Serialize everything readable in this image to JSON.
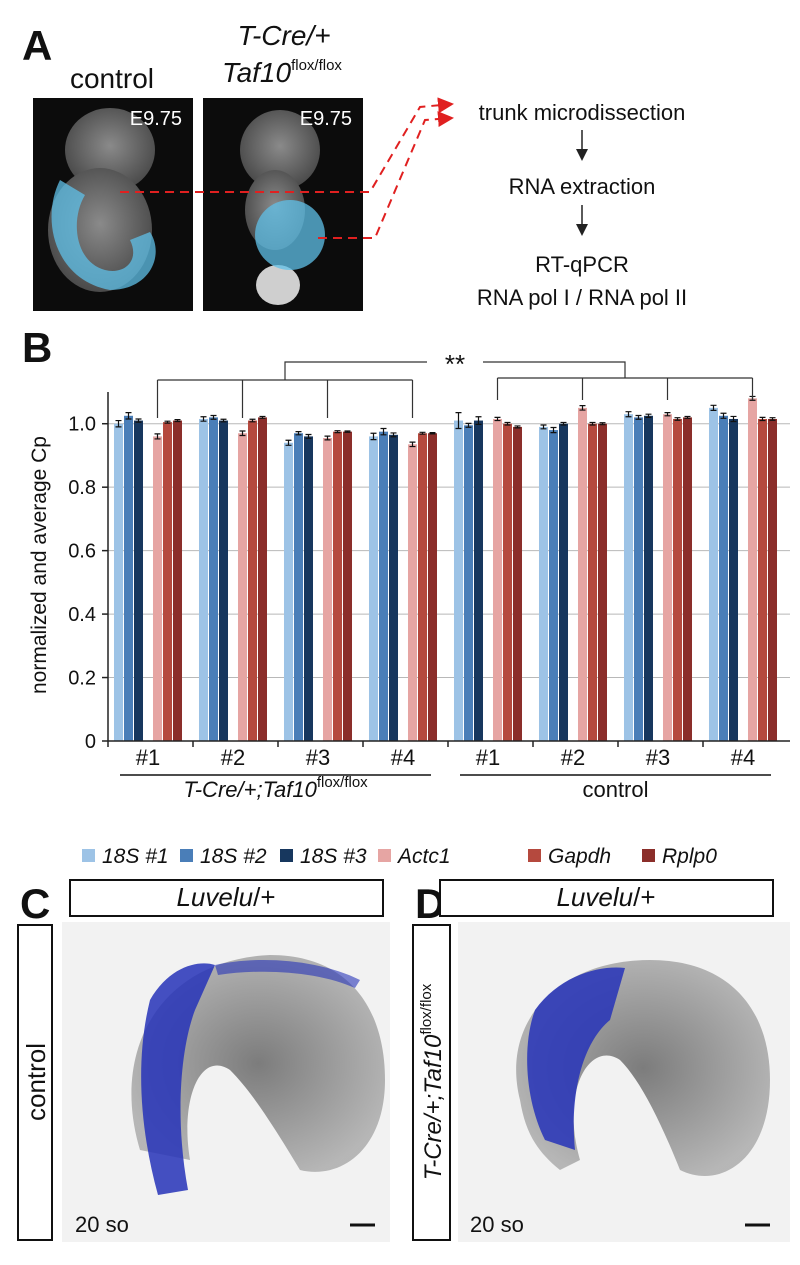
{
  "panel_a": {
    "label": "A",
    "control": "control",
    "mutant_line1": "T-Cre/+",
    "mutant_line2": {
      "base": "Taf10",
      "sup": "flox/flox"
    },
    "stages": [
      "E9.75",
      "E9.75"
    ],
    "steps": [
      "trunk microdissection",
      "RNA extraction",
      "RT-qPCR",
      "RNA pol I / RNA pol II"
    ]
  },
  "panel_b": {
    "label": "B"
  },
  "panel_c": {
    "label": "C",
    "header": {
      "italic": "Luvelu",
      "rest": "/+"
    },
    "side": "control",
    "stage": "20 so"
  },
  "panel_d": {
    "label": "D",
    "header": {
      "italic": "Luvelu",
      "rest": "/+"
    },
    "side": {
      "base": "T-Cre/+;Taf10",
      "sup": "flox/flox"
    },
    "stage": "20 so"
  },
  "chart_data": {
    "type": "bar",
    "ylabel": "normalized and average Cp",
    "categories": [
      "#1",
      "#2",
      "#3",
      "#4",
      "#1",
      "#2",
      "#3",
      "#4"
    ],
    "groups": [
      {
        "base": "T-Cre/+;Taf10",
        "sup": "flox/flox"
      },
      {
        "base": "control"
      }
    ],
    "significance": "**",
    "ylim": [
      0,
      1.1
    ],
    "yticks": [
      0,
      0.2,
      0.4,
      0.6,
      0.8,
      {
        "value": 1,
        "label": "1.0"
      }
    ],
    "grid": true,
    "series": [
      {
        "name": "18S #1",
        "color": "#9dc3e6",
        "values": [
          1.0,
          1.015,
          0.94,
          0.96,
          1.01,
          0.99,
          1.03,
          1.05
        ],
        "errors": [
          0.01,
          0.007,
          0.008,
          0.01,
          0.025,
          0.006,
          0.008,
          0.008
        ]
      },
      {
        "name": "18S #2",
        "color": "#4a7eb8",
        "values": [
          1.025,
          1.02,
          0.97,
          0.975,
          0.995,
          0.98,
          1.02,
          1.025
        ],
        "errors": [
          0.01,
          0.006,
          0.005,
          0.01,
          0.006,
          0.008,
          0.006,
          0.008
        ]
      },
      {
        "name": "18S #3",
        "color": "#17375e",
        "values": [
          1.01,
          1.01,
          0.96,
          0.965,
          1.01,
          1.0,
          1.025,
          1.015
        ],
        "errors": [
          0.005,
          0.004,
          0.006,
          0.006,
          0.012,
          0.004,
          0.005,
          0.008
        ]
      },
      {
        "name": "Actc1",
        "color": "#e6a5a3",
        "values": [
          0.96,
          0.97,
          0.955,
          0.935,
          1.015,
          1.05,
          1.03,
          1.08
        ],
        "errors": [
          0.008,
          0.007,
          0.006,
          0.007,
          0.005,
          0.007,
          0.005,
          0.006
        ]
      },
      {
        "name": "Gapdh",
        "color": "#b5493e",
        "values": [
          1.005,
          1.01,
          0.975,
          0.97,
          1.0,
          1.0,
          1.015,
          1.015
        ],
        "errors": [
          0.003,
          0.004,
          0.003,
          0.003,
          0.004,
          0.004,
          0.004,
          0.005
        ]
      },
      {
        "name": "Rplp0",
        "color": "#8b2e2a",
        "values": [
          1.01,
          1.02,
          0.975,
          0.97,
          0.99,
          1.0,
          1.02,
          1.015
        ],
        "errors": [
          0.003,
          0.003,
          0.002,
          0.002,
          0.003,
          0.003,
          0.003,
          0.004
        ]
      }
    ]
  }
}
